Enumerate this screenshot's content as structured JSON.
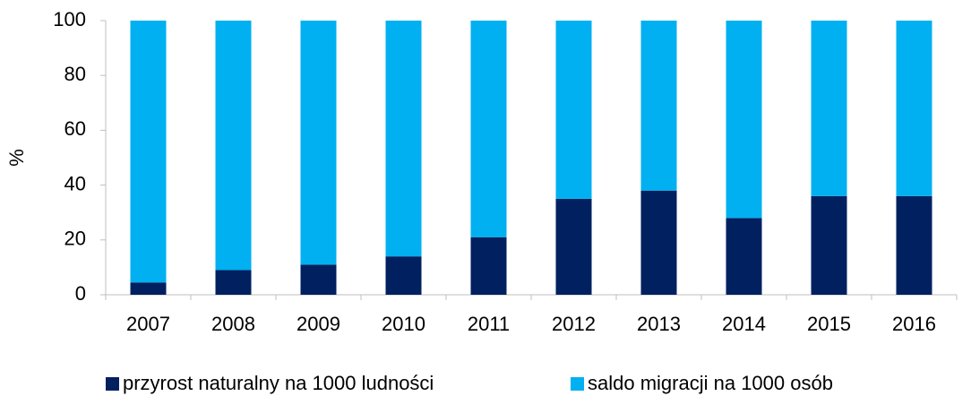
{
  "chart_data": {
    "type": "stacked_bar",
    "y_label": "%",
    "categories": [
      "2007",
      "2008",
      "2009",
      "2010",
      "2011",
      "2012",
      "2013",
      "2014",
      "2015",
      "2016"
    ],
    "series": [
      {
        "name": "przyrost naturalny na 1000 ludności",
        "color": "#002060",
        "values": [
          4.5,
          9,
          11,
          14,
          21,
          35,
          38,
          28,
          36,
          36
        ]
      },
      {
        "name": "saldo migracji na 1000 osób",
        "color": "#00b0f0",
        "values": [
          95.5,
          91,
          89,
          86,
          79,
          65,
          62,
          72,
          64,
          64
        ]
      }
    ],
    "ylim": [
      0,
      100
    ],
    "yticks": [
      0,
      20,
      40,
      60,
      80,
      100
    ],
    "grid": false
  }
}
